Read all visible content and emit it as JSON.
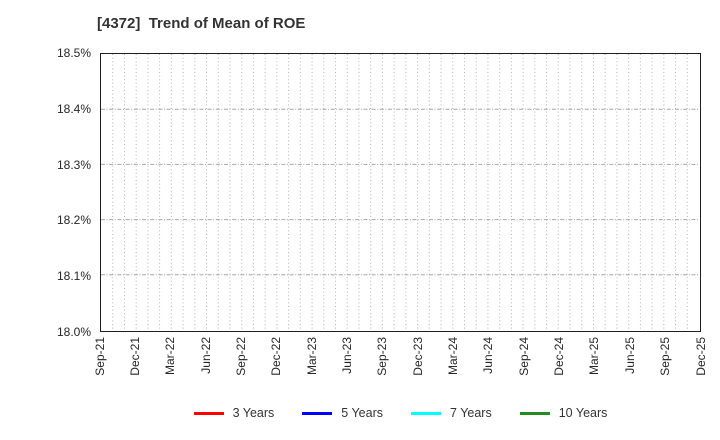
{
  "chart_data": {
    "type": "line",
    "title": "[4372]  Trend of Mean of ROE",
    "x_tick_labels": [
      "Sep-21",
      "Dec-21",
      "Mar-22",
      "Jun-22",
      "Sep-22",
      "Dec-22",
      "Mar-23",
      "Jun-23",
      "Sep-23",
      "Dec-23",
      "Mar-24",
      "Jun-24",
      "Sep-24",
      "Dec-24",
      "Mar-25",
      "Jun-25",
      "Sep-25",
      "Dec-25"
    ],
    "y_tick_labels": [
      "18.0%",
      "18.1%",
      "18.2%",
      "18.3%",
      "18.4%",
      "18.5%"
    ],
    "ylim": [
      18.0,
      18.5
    ],
    "y_tick_step": 0.1,
    "xlabel": "",
    "ylabel": "",
    "grid": true,
    "minor_vertical_gridlines_per_quarter": 3,
    "legend_position": "bottom",
    "series": [
      {
        "name": "3 Years",
        "color": "#ff0000",
        "values": []
      },
      {
        "name": "5 Years",
        "color": "#0000ff",
        "values": []
      },
      {
        "name": "7 Years",
        "color": "#00ffff",
        "values": []
      },
      {
        "name": "10 Years",
        "color": "#228b22",
        "values": []
      }
    ],
    "note": "no series data points visible within plotted y-range"
  }
}
